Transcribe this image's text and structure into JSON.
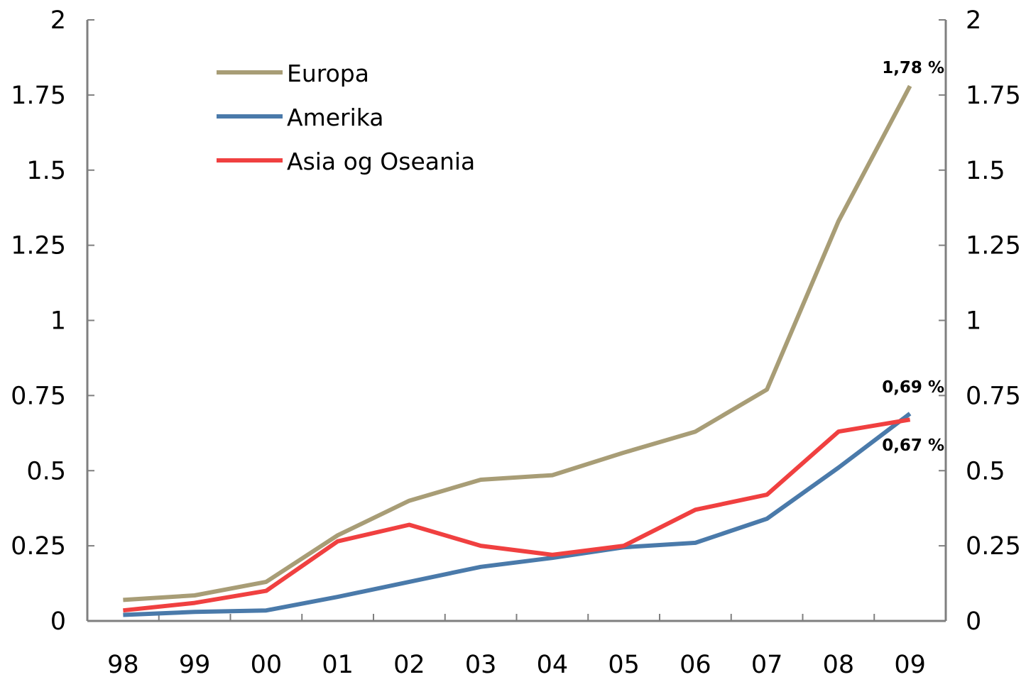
{
  "chart_data": {
    "type": "line",
    "x": [
      "98",
      "99",
      "00",
      "01",
      "02",
      "03",
      "04",
      "05",
      "06",
      "07",
      "08",
      "09"
    ],
    "ylim": [
      0,
      2
    ],
    "y_ticks": [
      "0",
      "0.25",
      "0.5",
      "0.75",
      "1",
      "1.25",
      "1.5",
      "1.75",
      "2"
    ],
    "y2_ticks": [
      "0",
      "0.25",
      "0.5",
      "0.75",
      "1",
      "1.25",
      "1.5",
      "1.75",
      "2"
    ],
    "grid": false,
    "legend_position": "top-left",
    "series": [
      {
        "name": "Europa",
        "color": "#a89d76",
        "values": [
          0.07,
          0.085,
          0.13,
          0.285,
          0.4,
          0.47,
          0.485,
          0.56,
          0.63,
          0.77,
          1.33,
          1.78
        ]
      },
      {
        "name": "Amerika",
        "color": "#4a7aaa",
        "values": [
          0.02,
          0.03,
          0.035,
          0.08,
          0.13,
          0.18,
          0.21,
          0.245,
          0.26,
          0.34,
          0.51,
          0.69
        ]
      },
      {
        "name": "Asia og Oseania",
        "color": "#f04040",
        "values": [
          0.035,
          0.06,
          0.1,
          0.265,
          0.32,
          0.25,
          0.22,
          0.25,
          0.37,
          0.42,
          0.63,
          0.67
        ]
      }
    ],
    "annotations": [
      {
        "series": "Europa",
        "text": "1,78 %"
      },
      {
        "series": "Amerika",
        "text": "0,69 %"
      },
      {
        "series": "Asia og Oseania",
        "text": "0,67 %"
      }
    ]
  }
}
